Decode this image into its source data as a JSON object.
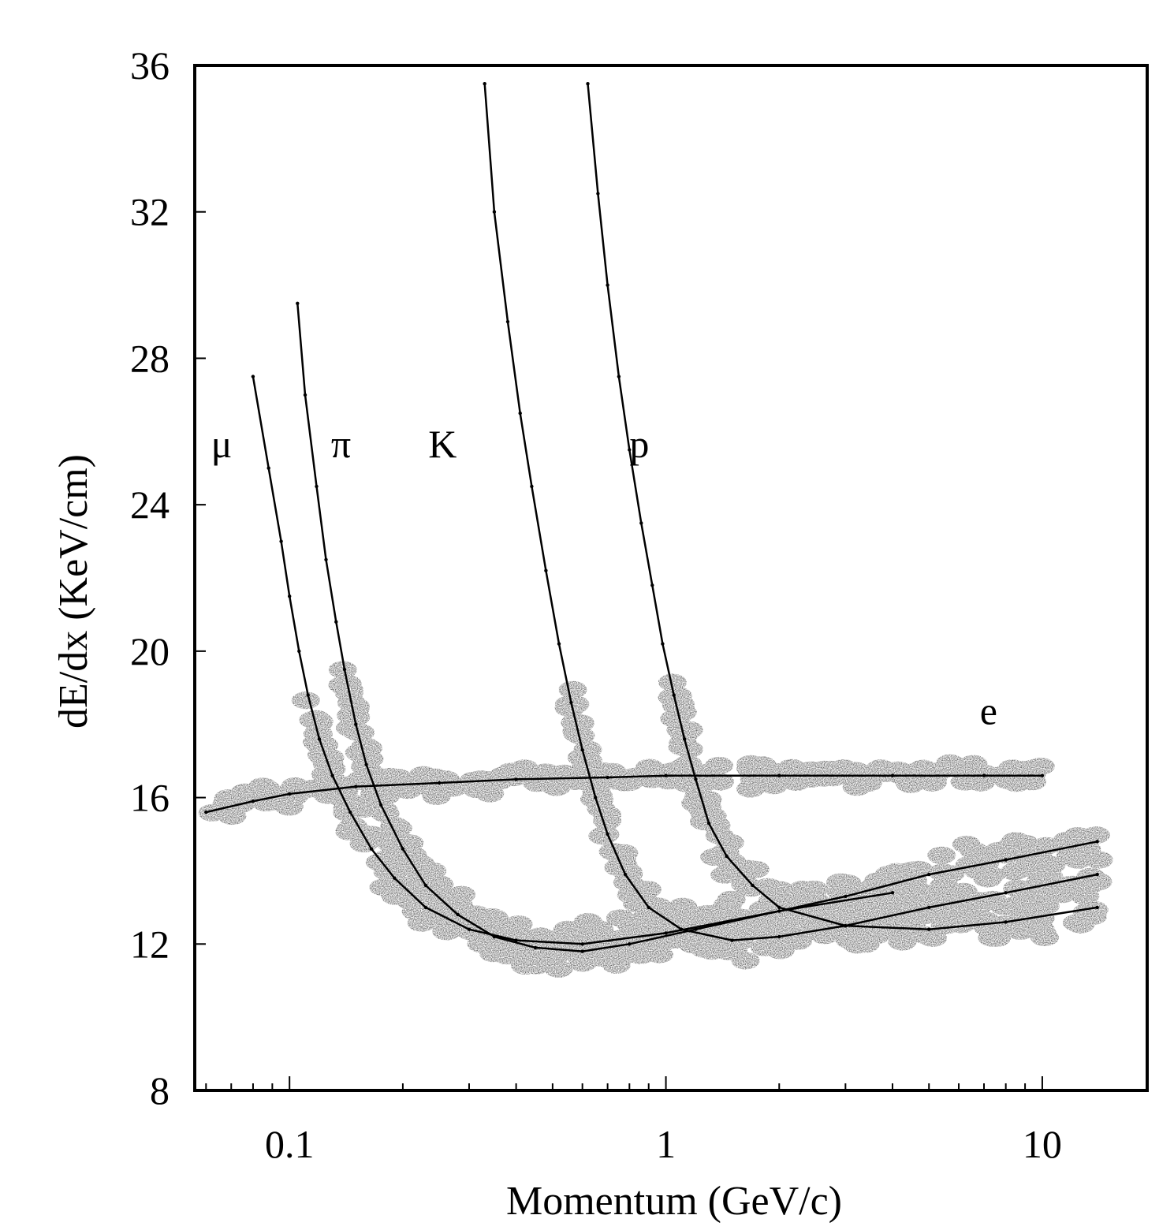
{
  "chart_data": {
    "type": "scatter",
    "title": "",
    "xlabel": "Momentum (GeV/c)",
    "ylabel": "dE/dx (KeV/cm)",
    "x_scale": "log",
    "xlim": [
      0.056,
      19
    ],
    "ylim": [
      8,
      36
    ],
    "x_ticks": [
      {
        "value": 0.1,
        "label": "0.1"
      },
      {
        "value": 1,
        "label": "1"
      },
      {
        "value": 10,
        "label": "10"
      }
    ],
    "y_ticks": [
      {
        "value": 8,
        "label": "8"
      },
      {
        "value": 12,
        "label": "12"
      },
      {
        "value": 16,
        "label": "16"
      },
      {
        "value": 20,
        "label": "20"
      },
      {
        "value": 24,
        "label": "24"
      },
      {
        "value": 28,
        "label": "28"
      },
      {
        "value": 32,
        "label": "32"
      },
      {
        "value": 36,
        "label": "36"
      }
    ],
    "grid": false,
    "legend": "none",
    "marker_color": "#000000",
    "series": [
      {
        "name": "μ",
        "label_at": {
          "x": 0.066,
          "y": 25.3
        },
        "points": [
          [
            0.08,
            27.5
          ],
          [
            0.088,
            25.0
          ],
          [
            0.095,
            23.0
          ],
          [
            0.1,
            21.5
          ],
          [
            0.106,
            20.0
          ],
          [
            0.112,
            18.8
          ],
          [
            0.12,
            17.6
          ],
          [
            0.13,
            16.6
          ],
          [
            0.145,
            15.6
          ],
          [
            0.165,
            14.6
          ],
          [
            0.19,
            13.8
          ],
          [
            0.23,
            13.0
          ],
          [
            0.3,
            12.4
          ],
          [
            0.4,
            12.1
          ],
          [
            0.6,
            12.0
          ],
          [
            1.0,
            12.3
          ],
          [
            2.0,
            12.9
          ],
          [
            4.0,
            13.4
          ]
        ]
      },
      {
        "name": "π",
        "label_at": {
          "x": 0.137,
          "y": 25.3
        },
        "points": [
          [
            0.105,
            29.5
          ],
          [
            0.11,
            27.0
          ],
          [
            0.118,
            24.5
          ],
          [
            0.125,
            22.5
          ],
          [
            0.133,
            20.8
          ],
          [
            0.14,
            19.5
          ],
          [
            0.15,
            18.0
          ],
          [
            0.16,
            16.9
          ],
          [
            0.175,
            15.8
          ],
          [
            0.2,
            14.6
          ],
          [
            0.23,
            13.6
          ],
          [
            0.28,
            12.8
          ],
          [
            0.35,
            12.2
          ],
          [
            0.45,
            11.9
          ],
          [
            0.6,
            11.8
          ],
          [
            0.8,
            12.0
          ],
          [
            1.2,
            12.4
          ],
          [
            2.0,
            12.9
          ],
          [
            3.0,
            13.3
          ],
          [
            5.0,
            13.9
          ],
          [
            8.0,
            14.3
          ],
          [
            14.0,
            14.8
          ]
        ]
      },
      {
        "name": "K",
        "label_at": {
          "x": 0.255,
          "y": 25.3
        },
        "points": [
          [
            0.33,
            35.5
          ],
          [
            0.35,
            32.0
          ],
          [
            0.38,
            29.0
          ],
          [
            0.41,
            26.5
          ],
          [
            0.44,
            24.5
          ],
          [
            0.48,
            22.2
          ],
          [
            0.52,
            20.2
          ],
          [
            0.56,
            18.6
          ],
          [
            0.6,
            17.3
          ],
          [
            0.65,
            16.0
          ],
          [
            0.7,
            15.0
          ],
          [
            0.78,
            13.9
          ],
          [
            0.9,
            13.0
          ],
          [
            1.1,
            12.4
          ],
          [
            1.5,
            12.1
          ],
          [
            2.0,
            12.2
          ],
          [
            3.0,
            12.5
          ],
          [
            5.0,
            13.0
          ],
          [
            8.0,
            13.4
          ],
          [
            14.0,
            13.9
          ]
        ]
      },
      {
        "name": "p",
        "label_at": {
          "x": 0.85,
          "y": 25.3
        },
        "points": [
          [
            0.62,
            35.5
          ],
          [
            0.66,
            32.5
          ],
          [
            0.7,
            30.0
          ],
          [
            0.75,
            27.5
          ],
          [
            0.8,
            25.5
          ],
          [
            0.86,
            23.5
          ],
          [
            0.92,
            21.8
          ],
          [
            0.98,
            20.2
          ],
          [
            1.05,
            18.8
          ],
          [
            1.12,
            17.6
          ],
          [
            1.2,
            16.5
          ],
          [
            1.3,
            15.3
          ],
          [
            1.45,
            14.4
          ],
          [
            1.7,
            13.6
          ],
          [
            2.0,
            13.0
          ],
          [
            3.0,
            12.5
          ],
          [
            5.0,
            12.4
          ],
          [
            8.0,
            12.6
          ],
          [
            14.0,
            13.0
          ]
        ]
      },
      {
        "name": "e",
        "label_at": {
          "x": 7.2,
          "y": 18.0
        },
        "points": [
          [
            0.06,
            15.6
          ],
          [
            0.08,
            15.9
          ],
          [
            0.1,
            16.1
          ],
          [
            0.15,
            16.3
          ],
          [
            0.25,
            16.4
          ],
          [
            0.4,
            16.5
          ],
          [
            0.7,
            16.55
          ],
          [
            1.0,
            16.6
          ],
          [
            2.0,
            16.6
          ],
          [
            4.0,
            16.6
          ],
          [
            7.0,
            16.6
          ],
          [
            10.0,
            16.6
          ]
        ]
      }
    ]
  }
}
